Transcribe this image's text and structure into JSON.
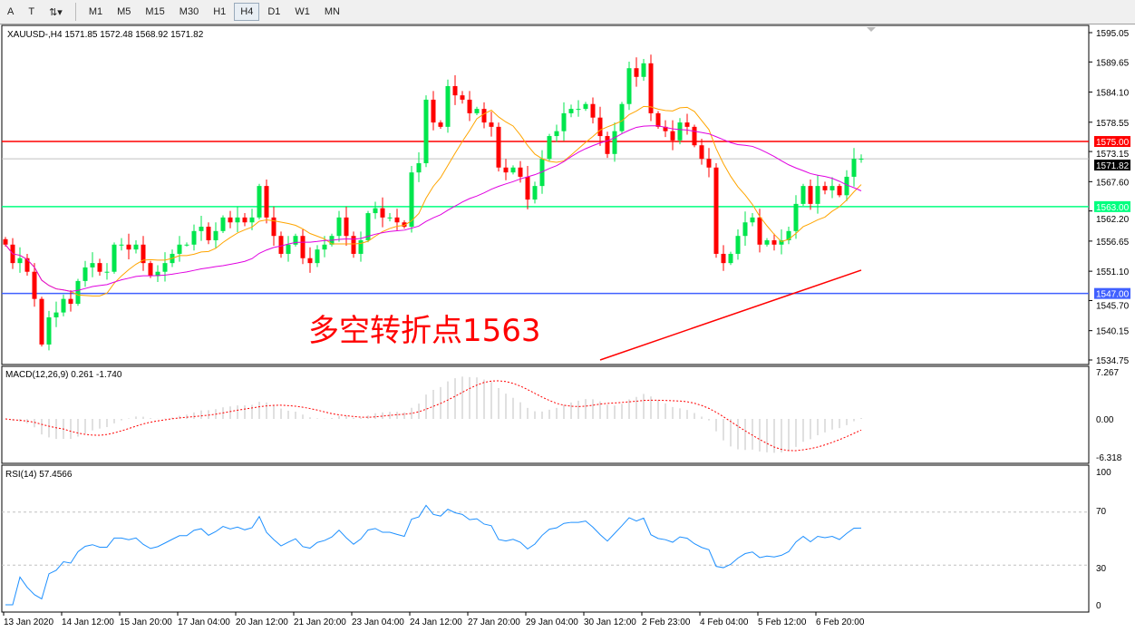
{
  "toolbar": {
    "tools": [
      "A",
      "T",
      "⇅▾"
    ],
    "timeframes": [
      "M1",
      "M5",
      "M15",
      "M30",
      "H1",
      "H4",
      "D1",
      "W1",
      "MN"
    ],
    "active": "H4"
  },
  "chart_header": "XAUUSD-,H4  1571.85 1572.48 1568.92 1571.82",
  "annotation": "多空转折点1563",
  "colors": {
    "bull": "#00e64d",
    "bear": "#ff0000",
    "ma_fast": "#ffa500",
    "ma_mid": "#e000e0",
    "ma_long": "#ff0000",
    "macd_hist": "#c0c0c0",
    "macd_signal": "#ff0000",
    "rsi": "#1e90ff"
  },
  "chart_data": {
    "type": "candlestick",
    "symbol": "XAUUSD-",
    "timeframe": "H4",
    "ylim": [
      1534.75,
      1595.05
    ],
    "price_ticks": [
      "1595.05",
      "1589.65",
      "1584.10",
      "1578.55",
      "1573.15",
      "1567.60",
      "1562.20",
      "1556.65",
      "1551.10",
      "1545.70",
      "1540.15",
      "1534.75"
    ],
    "x_labels": [
      "13 Jan 2020",
      "14 Jan 12:00",
      "15 Jan 20:00",
      "17 Jan 04:00",
      "20 Jan 12:00",
      "21 Jan 20:00",
      "23 Jan 04:00",
      "24 Jan 12:00",
      "27 Jan 20:00",
      "29 Jan 04:00",
      "30 Jan 12:00",
      "2 Feb 23:00",
      "4 Feb 04:00",
      "5 Feb 12:00",
      "6 Feb 20:00"
    ],
    "closes": [
      1556.0,
      1552.6,
      1553.5,
      1551.0,
      1546.0,
      1537.6,
      1542.6,
      1543.5,
      1546.0,
      1545.1,
      1549.3,
      1551.8,
      1552.6,
      1551.0,
      1551.0,
      1556.0,
      1556.0,
      1555.1,
      1556.0,
      1552.6,
      1550.2,
      1551.0,
      1552.6,
      1554.3,
      1556.0,
      1556.0,
      1558.5,
      1559.3,
      1556.8,
      1558.5,
      1561.0,
      1560.1,
      1561.0,
      1560.1,
      1561.0,
      1566.8,
      1561.0,
      1557.6,
      1554.3,
      1556.0,
      1557.6,
      1553.5,
      1552.6,
      1555.1,
      1556.0,
      1557.6,
      1561.0,
      1557.6,
      1554.3,
      1556.8,
      1561.8,
      1562.7,
      1561.0,
      1561.0,
      1560.1,
      1559.3,
      1569.3,
      1571.0,
      1582.7,
      1578.5,
      1577.7,
      1585.2,
      1583.5,
      1582.7,
      1580.2,
      1581.0,
      1578.5,
      1577.7,
      1570.2,
      1569.3,
      1570.2,
      1568.5,
      1564.3,
      1566.8,
      1571.8,
      1576.0,
      1576.9,
      1580.2,
      1581.0,
      1581.0,
      1581.9,
      1579.4,
      1576.0,
      1572.7,
      1576.9,
      1581.9,
      1588.5,
      1586.9,
      1589.4,
      1580.2,
      1577.7,
      1576.9,
      1575.2,
      1578.5,
      1577.7,
      1574.3,
      1571.8,
      1570.2,
      1554.3,
      1552.6,
      1554.3,
      1557.6,
      1560.1,
      1561.0,
      1556.0,
      1556.8,
      1556.0,
      1556.8,
      1558.5,
      1563.5,
      1566.8,
      1563.5,
      1566.8,
      1566.0,
      1566.8,
      1565.1,
      1568.5,
      1571.8,
      1571.82
    ],
    "ma_long": {
      "start": 1534.75,
      "end": 1551.3
    },
    "levels": [
      {
        "price": 1575.0,
        "label": "1575.00",
        "color": "#ff0000"
      },
      {
        "price": 1563.0,
        "label": "1563.00",
        "color": "#00ff7f"
      },
      {
        "price": 1547.0,
        "label": "1547.00",
        "color": "#4060ff"
      },
      {
        "price": 1571.82,
        "label": "1571.82",
        "color": "#000000"
      }
    ],
    "macd": {
      "title": "MACD(12,26,9) 0.261 -1.740",
      "ticks": [
        "7.267",
        "0.00",
        "-6.318"
      ],
      "ylim": [
        -6.318,
        7.267
      ]
    },
    "rsi": {
      "title": "RSI(14) 57.4566",
      "ticks": [
        "100",
        "70",
        "30",
        "0"
      ],
      "levels": [
        70,
        30
      ]
    }
  }
}
